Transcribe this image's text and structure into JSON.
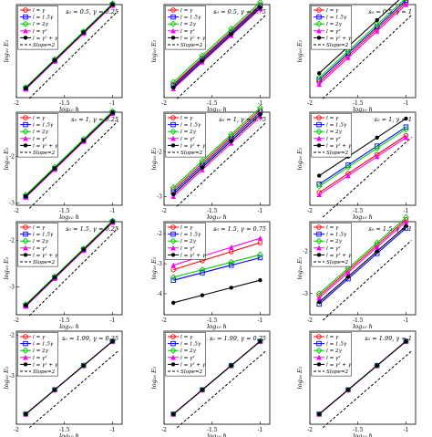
{
  "figure": {
    "xlabel": "log₁₀ h",
    "ylabel": "log₁₀ E₂",
    "legend_labels": [
      "l = γ",
      "l = 1.5γ",
      "l = 2γ",
      "l = γ²",
      "l = γ² + γ",
      "Slope=2"
    ],
    "colors": {
      "l=g": "#ff0000",
      "l=1.5g": "#0000ff",
      "l=2g": "#00cc00",
      "l=g2": "#ff00ff",
      "l=g2+g": "#000000",
      "slope": "#000000"
    },
    "markers": {
      "l=g": "circle",
      "l=1.5g": "square",
      "l=2g": "diamond",
      "l=g2": "triangle",
      "l=g2+g": "dot"
    }
  },
  "chart_data": [
    {
      "type": "line",
      "title": "s₀ = 0.5, γ = 0.25",
      "xlim": [
        -2,
        -0.9
      ],
      "ylim": [
        -3.1,
        -1.1
      ],
      "xticks": [
        "-2",
        "-1.5",
        "-1"
      ],
      "yticks": [],
      "x": [
        -1.903,
        -1.602,
        -1.301,
        -1.0
      ],
      "series": [
        {
          "name": "l = γ",
          "key": "l=g",
          "values": [
            -2.9,
            -2.3,
            -1.7,
            -1.1
          ]
        },
        {
          "name": "l = 1.5γ",
          "key": "l=1.5g",
          "values": [
            -2.9,
            -2.3,
            -1.7,
            -1.1
          ]
        },
        {
          "name": "l = 2γ",
          "key": "l=2g",
          "values": [
            -2.88,
            -2.28,
            -1.68,
            -1.08
          ]
        },
        {
          "name": "l = γ²",
          "key": "l=g2",
          "values": [
            -2.92,
            -2.32,
            -1.72,
            -1.12
          ]
        },
        {
          "name": "l = γ² + γ",
          "key": "l=g2+g",
          "values": [
            -2.9,
            -2.3,
            -1.7,
            -1.1
          ]
        },
        {
          "name": "Slope=2",
          "key": "slope",
          "values": [
            -3.0,
            -2.4,
            -1.8,
            -1.2
          ]
        }
      ]
    },
    {
      "type": "line",
      "title": "s₀ = 0.5, γ = 0.75",
      "xlim": [
        -2,
        -0.9
      ],
      "ylim": [
        -3.4,
        -1.3
      ],
      "xticks": [
        "-2",
        "-1.5",
        "-1"
      ],
      "yticks": [],
      "x": [
        -1.903,
        -1.602,
        -1.301,
        -1.0
      ],
      "series": [
        {
          "name": "l = γ",
          "key": "l=g",
          "values": [
            -3.1,
            -2.5,
            -1.9,
            -1.3
          ]
        },
        {
          "name": "l = 1.5γ",
          "key": "l=1.5g",
          "values": [
            -3.13,
            -2.53,
            -1.93,
            -1.33
          ]
        },
        {
          "name": "l = 2γ",
          "key": "l=2g",
          "values": [
            -3.05,
            -2.45,
            -1.85,
            -1.25
          ]
        },
        {
          "name": "l = γ²",
          "key": "l=g2",
          "values": [
            -3.2,
            -2.6,
            -2.0,
            -1.4
          ]
        },
        {
          "name": "l = γ² + γ",
          "key": "l=g2+g",
          "values": [
            -3.17,
            -2.57,
            -1.97,
            -1.37
          ]
        },
        {
          "name": "Slope=2",
          "key": "slope",
          "values": [
            -3.3,
            -2.7,
            -2.1,
            -1.5
          ]
        }
      ]
    },
    {
      "type": "line",
      "title": "s₀ = 0.5, γ = 1",
      "xlim": [
        -2,
        -0.9
      ],
      "ylim": [
        -3.4,
        -1.3
      ],
      "xticks": [
        "-2",
        "-1.5",
        "-1"
      ],
      "yticks": [],
      "x": [
        -1.903,
        -1.602,
        -1.301,
        -1.0
      ],
      "series": [
        {
          "name": "l = γ",
          "key": "l=g",
          "values": [
            -3.05,
            -2.45,
            -1.85,
            -1.25
          ]
        },
        {
          "name": "l = 1.5γ",
          "key": "l=1.5g",
          "values": [
            -3.0,
            -2.4,
            -1.8,
            -1.2
          ]
        },
        {
          "name": "l = 2γ",
          "key": "l=2g",
          "values": [
            -2.95,
            -2.35,
            -1.75,
            -1.15
          ]
        },
        {
          "name": "l = γ²",
          "key": "l=g2",
          "values": [
            -3.1,
            -2.5,
            -1.9,
            -1.3
          ]
        },
        {
          "name": "l = γ² + γ",
          "key": "l=g2+g",
          "values": [
            -2.85,
            -2.25,
            -1.65,
            -1.05
          ]
        },
        {
          "name": "Slope=2",
          "key": "slope",
          "values": [
            -3.3,
            -2.7,
            -2.1,
            -1.5
          ]
        }
      ]
    },
    {
      "type": "line",
      "title": "s₀ = 1, γ = 0.25",
      "xlim": [
        -2,
        -0.9
      ],
      "ylim": [
        -3.05,
        -1.05
      ],
      "xticks": [
        "-2",
        "-1.5",
        "-1"
      ],
      "yticks": [
        "-2",
        "-3"
      ],
      "x": [
        -1.903,
        -1.602,
        -1.301,
        -1.0
      ],
      "series": [
        {
          "name": "l = γ",
          "key": "l=g",
          "values": [
            -2.86,
            -2.26,
            -1.66,
            -1.06
          ]
        },
        {
          "name": "l = 1.5γ",
          "key": "l=1.5g",
          "values": [
            -2.86,
            -2.26,
            -1.66,
            -1.06
          ]
        },
        {
          "name": "l = 2γ",
          "key": "l=2g",
          "values": [
            -2.83,
            -2.23,
            -1.63,
            -1.03
          ]
        },
        {
          "name": "l = γ²",
          "key": "l=g2",
          "values": [
            -2.88,
            -2.28,
            -1.68,
            -1.08
          ]
        },
        {
          "name": "l = γ² + γ",
          "key": "l=g2+g",
          "values": [
            -2.86,
            -2.26,
            -1.66,
            -1.06
          ]
        },
        {
          "name": "Slope=2",
          "key": "slope",
          "values": [
            -3.0,
            -2.4,
            -1.8,
            -1.2
          ]
        }
      ]
    },
    {
      "type": "line",
      "title": "s₀ = 1, γ = 0.75",
      "xlim": [
        -2,
        -0.9
      ],
      "ylim": [
        -3.2,
        -1.1
      ],
      "xticks": [
        "-2",
        "-1.5",
        "-1"
      ],
      "yticks": [
        "-2",
        "-3"
      ],
      "x": [
        -1.903,
        -1.602,
        -1.301,
        -1.0
      ],
      "series": [
        {
          "name": "l = γ",
          "key": "l=g",
          "values": [
            -2.85,
            -2.25,
            -1.65,
            -1.05
          ]
        },
        {
          "name": "l = 1.5γ",
          "key": "l=1.5g",
          "values": [
            -2.9,
            -2.3,
            -1.7,
            -1.1
          ]
        },
        {
          "name": "l = 2γ",
          "key": "l=2g",
          "values": [
            -2.8,
            -2.2,
            -1.6,
            -1.0
          ]
        },
        {
          "name": "l = γ²",
          "key": "l=g2",
          "values": [
            -3.0,
            -2.4,
            -1.8,
            -1.2
          ]
        },
        {
          "name": "l = γ² + γ",
          "key": "l=g2+g",
          "values": [
            -2.95,
            -2.35,
            -1.75,
            -1.15
          ]
        },
        {
          "name": "Slope=2",
          "key": "slope",
          "values": [
            -3.1,
            -2.5,
            -1.9,
            -1.3
          ]
        }
      ]
    },
    {
      "type": "line",
      "title": "s₀ = 1, γ = 1",
      "xlim": [
        -2,
        -0.9
      ],
      "ylim": [
        -3.7,
        -1.5
      ],
      "xticks": [
        "-2",
        "-1.5",
        "-1"
      ],
      "yticks": [],
      "x": [
        -1.903,
        -1.602,
        -1.301,
        -1.0
      ],
      "series": [
        {
          "name": "l = γ",
          "key": "l=g",
          "values": [
            -3.4,
            -2.95,
            -2.5,
            -2.05
          ]
        },
        {
          "name": "l = 1.5γ",
          "key": "l=1.5g",
          "values": [
            -3.2,
            -2.75,
            -2.3,
            -1.85
          ]
        },
        {
          "name": "l = 2γ",
          "key": "l=2g",
          "values": [
            -3.25,
            -2.8,
            -2.35,
            -1.9
          ]
        },
        {
          "name": "l = γ²",
          "key": "l=g2",
          "values": [
            -3.45,
            -3.0,
            -2.55,
            -2.1
          ]
        },
        {
          "name": "l = γ² + γ",
          "key": "l=g2+g",
          "values": [
            -3.0,
            -2.55,
            -2.1,
            -1.65
          ]
        },
        {
          "name": "Slope=2",
          "key": "slope",
          "values": [
            -3.85,
            -3.25,
            -2.65,
            -2.05
          ]
        }
      ]
    },
    {
      "type": "line",
      "title": "s₀ = 1.5, γ = 0.25",
      "xlim": [
        -2,
        -0.9
      ],
      "ylim": [
        -3.6,
        -1.6
      ],
      "xticks": [
        "-2",
        "-1.5",
        "-1"
      ],
      "yticks": [
        "-2",
        "-3"
      ],
      "x": [
        -1.903,
        -1.602,
        -1.301,
        -1.0
      ],
      "series": [
        {
          "name": "l = γ",
          "key": "l=g",
          "values": [
            -3.4,
            -2.8,
            -2.2,
            -1.6
          ]
        },
        {
          "name": "l = 1.5γ",
          "key": "l=1.5g",
          "values": [
            -3.4,
            -2.8,
            -2.2,
            -1.6
          ]
        },
        {
          "name": "l = 2γ",
          "key": "l=2g",
          "values": [
            -3.38,
            -2.78,
            -2.18,
            -1.58
          ]
        },
        {
          "name": "l = γ²",
          "key": "l=g2",
          "values": [
            -3.42,
            -2.82,
            -2.22,
            -1.62
          ]
        },
        {
          "name": "l = γ² + γ",
          "key": "l=g2+g",
          "values": [
            -3.4,
            -2.8,
            -2.2,
            -1.6
          ]
        },
        {
          "name": "Slope=2",
          "key": "slope",
          "values": [
            -3.5,
            -2.9,
            -2.3,
            -1.7
          ]
        }
      ]
    },
    {
      "type": "line",
      "title": "s₀ = 1.5, γ = 0.75",
      "xlim": [
        -2,
        -0.9
      ],
      "ylim": [
        -4.7,
        -1.6
      ],
      "xticks": [
        "-2",
        "-1.5",
        "-1"
      ],
      "yticks": [
        "-2",
        "-3",
        "-4"
      ],
      "x": [
        -1.903,
        -1.602,
        -1.301,
        -1.0
      ],
      "series": [
        {
          "name": "l = γ",
          "key": "l=g",
          "values": [
            -3.2,
            -2.9,
            -2.6,
            -2.3
          ]
        },
        {
          "name": "l = 1.5γ",
          "key": "l=1.5g",
          "values": [
            -3.55,
            -3.3,
            -3.05,
            -2.8
          ]
        },
        {
          "name": "l = 2γ",
          "key": "l=2g",
          "values": [
            -3.45,
            -3.2,
            -2.95,
            -2.7
          ]
        },
        {
          "name": "l = γ²",
          "key": "l=g2",
          "values": [
            -3.05,
            -2.75,
            -2.45,
            -2.15
          ]
        },
        {
          "name": "l = γ² + γ",
          "key": "l=g2+g",
          "values": [
            -4.3,
            -4.05,
            -3.8,
            -3.55
          ]
        }
      ]
    },
    {
      "type": "line",
      "title": "s₀ = 1.5, γ = 1",
      "xlim": [
        -2,
        -0.9
      ],
      "ylim": [
        -3.5,
        -1.3
      ],
      "xticks": [
        "-2",
        "-1.5",
        "-1"
      ],
      "yticks": [
        "-2",
        "-3"
      ],
      "x": [
        -1.903,
        -1.602,
        -1.301,
        -1.0
      ],
      "series": [
        {
          "name": "l = γ",
          "key": "l=g",
          "values": [
            -3.05,
            -2.45,
            -1.85,
            -1.25
          ]
        },
        {
          "name": "l = 1.5γ",
          "key": "l=1.5g",
          "values": [
            -3.25,
            -2.65,
            -2.05,
            -1.45
          ]
        },
        {
          "name": "l = 2γ",
          "key": "l=2g",
          "values": [
            -3.0,
            -2.4,
            -1.8,
            -1.2
          ]
        },
        {
          "name": "l = γ²",
          "key": "l=g2",
          "values": [
            -3.1,
            -2.5,
            -1.9,
            -1.3
          ]
        },
        {
          "name": "l = γ² + γ",
          "key": "l=g2+g",
          "values": [
            -3.2,
            -2.6,
            -2.0,
            -1.4
          ]
        },
        {
          "name": "Slope=2",
          "key": "slope",
          "values": [
            -3.5,
            -2.9,
            -2.3,
            -1.7
          ]
        }
      ]
    },
    {
      "type": "line",
      "title": "s₀ = 1.99, γ = 0.25",
      "xlim": [
        -2,
        -0.9
      ],
      "ylim": [
        -4.2,
        -1.9
      ],
      "xticks": [
        "-2",
        "-1.5",
        "-1"
      ],
      "yticks": [
        "-2",
        "-3"
      ],
      "x": [
        -1.903,
        -1.602,
        -1.301,
        -1.0
      ],
      "series": [
        {
          "name": "l = γ",
          "key": "l=g",
          "values": [
            -3.95,
            -3.35,
            -2.75,
            -2.15
          ]
        },
        {
          "name": "l = 1.5γ",
          "key": "l=1.5g",
          "values": [
            -3.95,
            -3.35,
            -2.75,
            -2.15
          ]
        },
        {
          "name": "l = 2γ",
          "key": "l=2g",
          "values": [
            -3.95,
            -3.35,
            -2.75,
            -2.15
          ]
        },
        {
          "name": "l = γ²",
          "key": "l=g2",
          "values": [
            -3.95,
            -3.35,
            -2.75,
            -2.15
          ]
        },
        {
          "name": "l = γ² + γ",
          "key": "l=g2+g",
          "values": [
            -3.95,
            -3.35,
            -2.75,
            -2.15
          ]
        },
        {
          "name": "Slope=2",
          "key": "slope",
          "values": [
            -4.15,
            -3.55,
            -2.95,
            -2.35
          ]
        }
      ]
    },
    {
      "type": "line",
      "title": "s₀ = 1.99, γ = 0.75",
      "xlim": [
        -2,
        -0.9
      ],
      "ylim": [
        -4.2,
        -1.9
      ],
      "xticks": [
        "-2",
        "-1.5",
        "-1"
      ],
      "yticks": [],
      "x": [
        -1.903,
        -1.602,
        -1.301,
        -1.0
      ],
      "series": [
        {
          "name": "l = γ",
          "key": "l=g",
          "values": [
            -3.95,
            -3.35,
            -2.75,
            -2.15
          ]
        },
        {
          "name": "l = 1.5γ",
          "key": "l=1.5g",
          "values": [
            -3.95,
            -3.35,
            -2.75,
            -2.15
          ]
        },
        {
          "name": "l = 2γ",
          "key": "l=2g",
          "values": [
            -3.95,
            -3.35,
            -2.75,
            -2.15
          ]
        },
        {
          "name": "l = γ²",
          "key": "l=g2",
          "values": [
            -3.95,
            -3.35,
            -2.75,
            -2.15
          ]
        },
        {
          "name": "l = γ² + γ",
          "key": "l=g2+g",
          "values": [
            -3.95,
            -3.35,
            -2.75,
            -2.15
          ]
        },
        {
          "name": "Slope=2",
          "key": "slope",
          "values": [
            -4.15,
            -3.55,
            -2.95,
            -2.35
          ]
        }
      ]
    },
    {
      "type": "line",
      "title": "s₀ = 1.99, γ = 1",
      "xlim": [
        -2,
        -0.9
      ],
      "ylim": [
        -4.2,
        -1.9
      ],
      "xticks": [
        "-2",
        "-1.5",
        "-1"
      ],
      "yticks": [],
      "x": [
        -1.903,
        -1.602,
        -1.301,
        -1.0
      ],
      "series": [
        {
          "name": "l = γ",
          "key": "l=g",
          "values": [
            -3.95,
            -3.35,
            -2.75,
            -2.15
          ]
        },
        {
          "name": "l = 1.5γ",
          "key": "l=1.5g",
          "values": [
            -3.95,
            -3.35,
            -2.75,
            -2.15
          ]
        },
        {
          "name": "l = 2γ",
          "key": "l=2g",
          "values": [
            -3.95,
            -3.35,
            -2.75,
            -2.15
          ]
        },
        {
          "name": "l = γ²",
          "key": "l=g2",
          "values": [
            -3.95,
            -3.35,
            -2.75,
            -2.15
          ]
        },
        {
          "name": "l = γ² + γ",
          "key": "l=g2+g",
          "values": [
            -3.95,
            -3.35,
            -2.75,
            -2.15
          ]
        },
        {
          "name": "Slope=2",
          "key": "slope",
          "values": [
            -4.15,
            -3.55,
            -2.95,
            -2.35
          ]
        }
      ]
    }
  ]
}
